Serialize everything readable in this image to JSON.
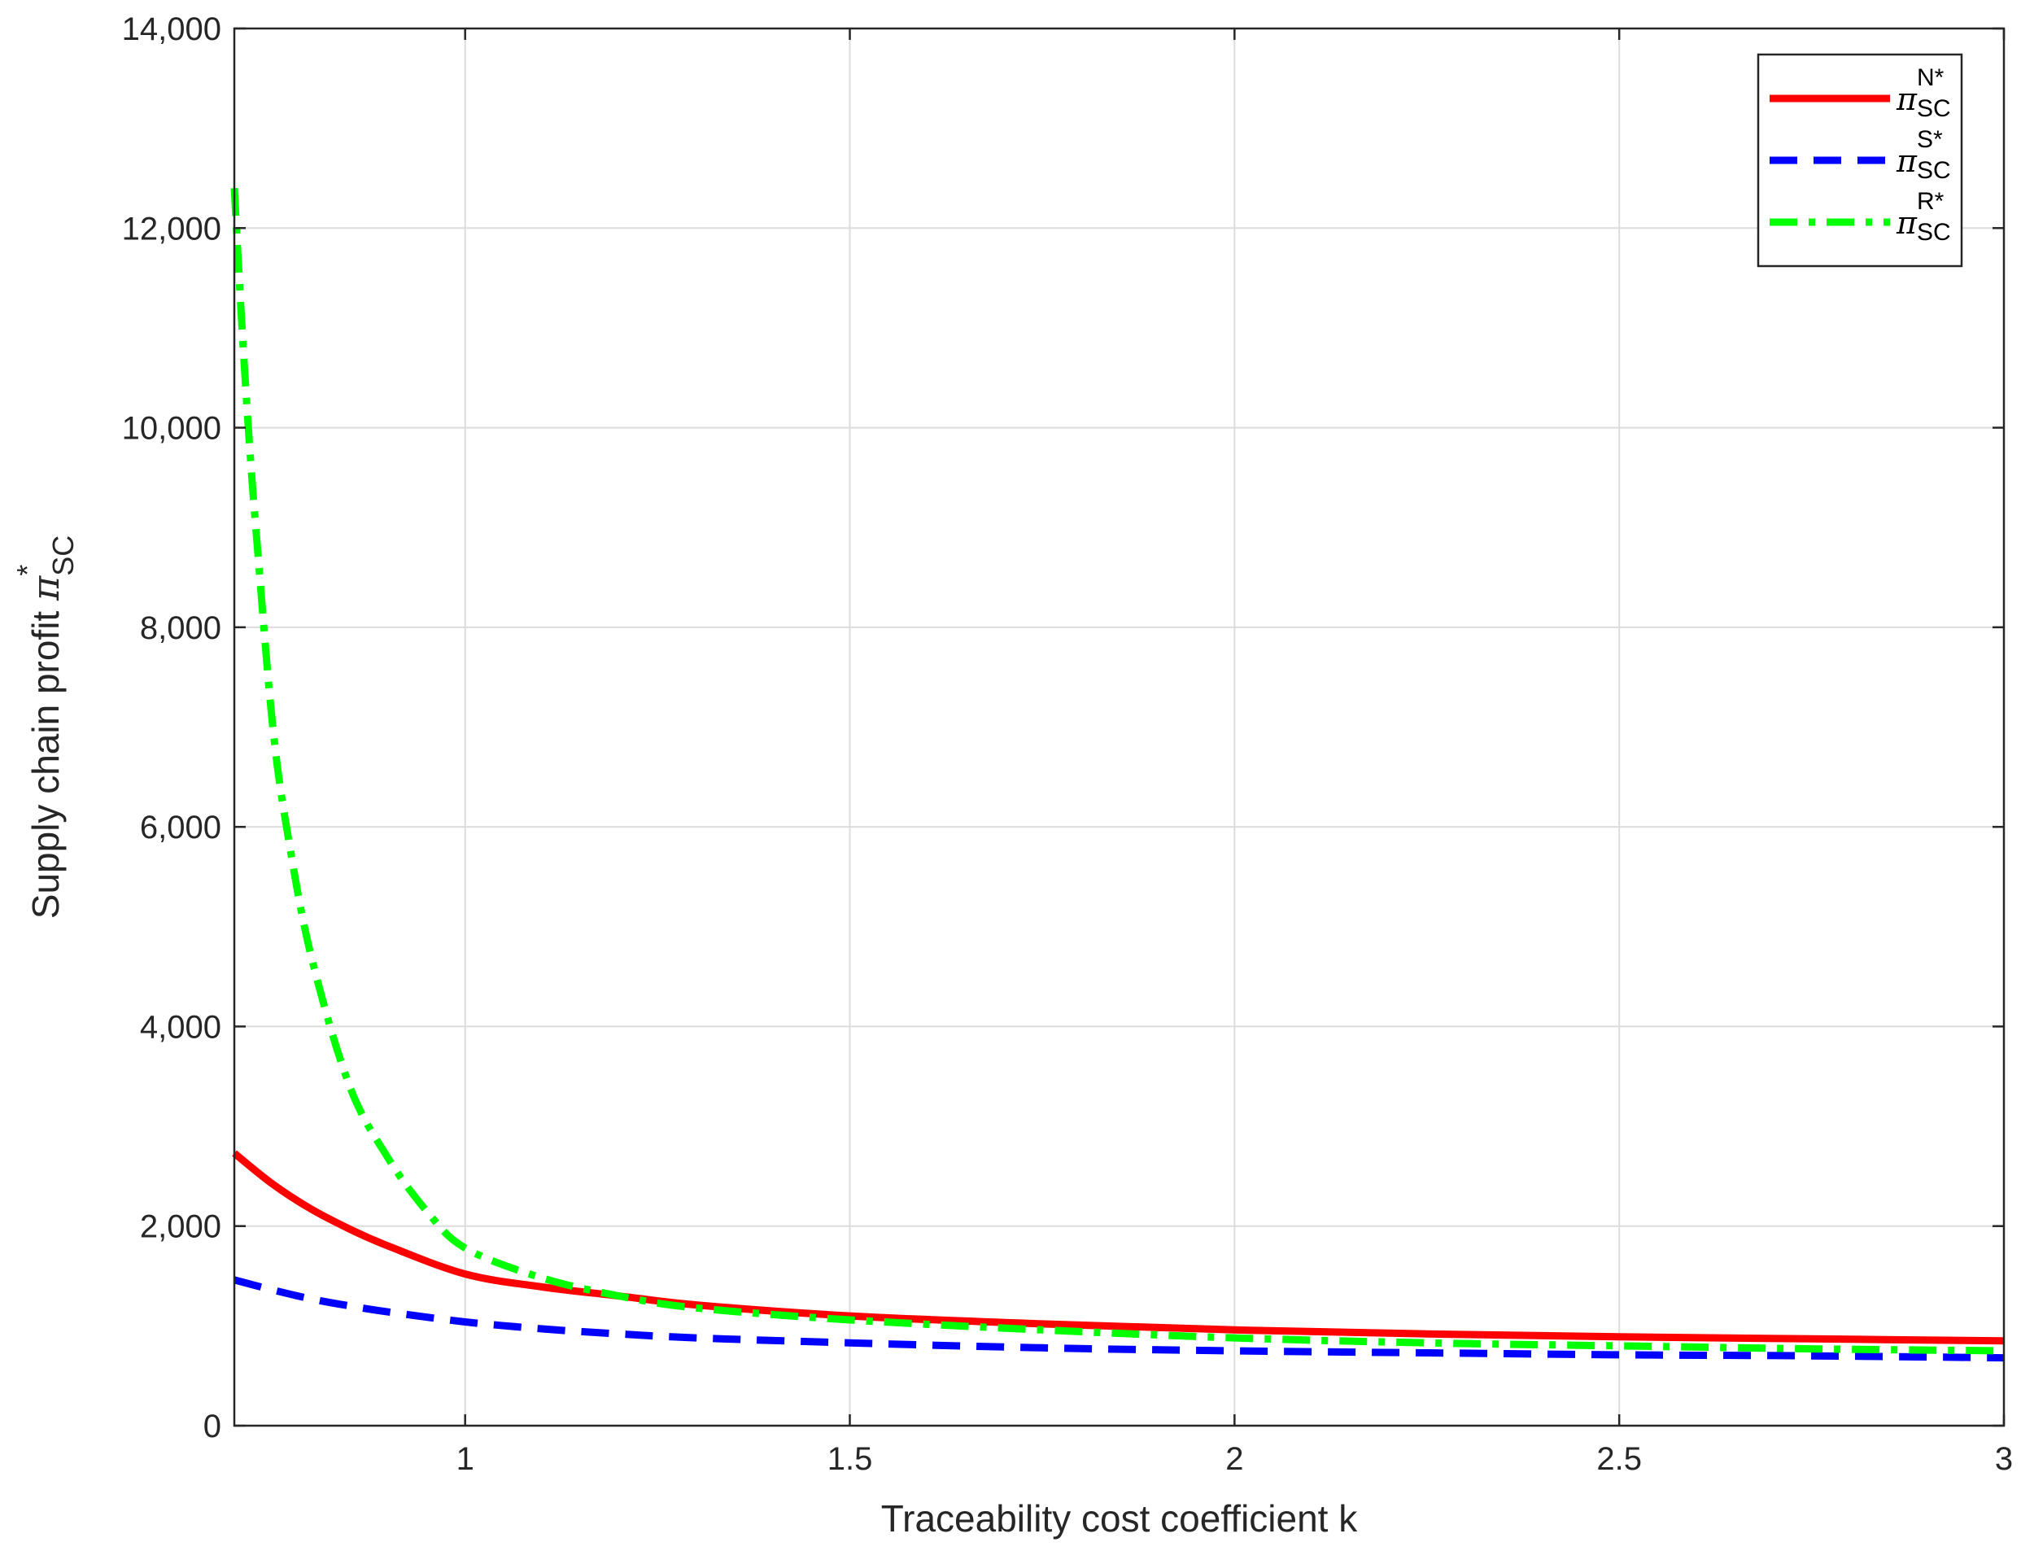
{
  "chart_data": {
    "type": "line",
    "title": "",
    "xlabel": "Traceability cost coefficient k",
    "ylabel": {
      "text": "Supply chain profit ",
      "symbol": "π",
      "superscript": "*",
      "subscript": "SC"
    },
    "xlim": [
      0.7,
      3
    ],
    "ylim": [
      0,
      14000
    ],
    "x_ticks": [
      1,
      1.5,
      2,
      2.5,
      3
    ],
    "x_tick_labels": [
      "1",
      "1.5",
      "2",
      "2.5",
      "3"
    ],
    "y_ticks": [
      0,
      2000,
      4000,
      6000,
      8000,
      10000,
      12000,
      14000
    ],
    "y_tick_labels": [
      "0",
      "2,000",
      "4,000",
      "6,000",
      "8,000",
      "10,000",
      "12,000",
      "14,000"
    ],
    "grid": true,
    "legend_position": "top-right",
    "series": [
      {
        "label": {
          "symbol": "π",
          "superscript": "N*",
          "subscript": "SC"
        },
        "color": "#ff0000",
        "style": "solid",
        "x": [
          0.7,
          0.75,
          0.8,
          0.85,
          0.9,
          1.0,
          1.1,
          1.2,
          1.3,
          1.5,
          1.75,
          2.0,
          2.25,
          2.5,
          2.75,
          3.0
        ],
        "y": [
          2730,
          2420,
          2170,
          1970,
          1800,
          1520,
          1390,
          1300,
          1210,
          1100,
          1020,
          960,
          920,
          890,
          870,
          850
        ]
      },
      {
        "label": {
          "symbol": "π",
          "superscript": "S*",
          "subscript": "SC"
        },
        "color": "#0000ff",
        "style": "dashed",
        "x": [
          0.7,
          0.75,
          0.8,
          0.85,
          0.9,
          1.0,
          1.1,
          1.2,
          1.3,
          1.5,
          1.75,
          2.0,
          2.25,
          2.5,
          2.75,
          3.0
        ],
        "y": [
          1460,
          1360,
          1270,
          1200,
          1140,
          1040,
          970,
          920,
          880,
          830,
          780,
          750,
          730,
          710,
          700,
          680
        ]
      },
      {
        "label": {
          "symbol": "π",
          "superscript": "R*",
          "subscript": "SC"
        },
        "color": "#00ff00",
        "style": "dashdot",
        "x": [
          0.7,
          0.71,
          0.72,
          0.73,
          0.75,
          0.77,
          0.8,
          0.85,
          0.9,
          0.95,
          1.0,
          1.1,
          1.2,
          1.3,
          1.5,
          1.75,
          2.0,
          2.25,
          2.5,
          2.75,
          3.0
        ],
        "y": [
          12400,
          11000,
          9800,
          8800,
          7000,
          5900,
          4700,
          3400,
          2680,
          2150,
          1780,
          1480,
          1300,
          1180,
          1060,
          960,
          880,
          830,
          800,
          770,
          750
        ]
      }
    ]
  }
}
